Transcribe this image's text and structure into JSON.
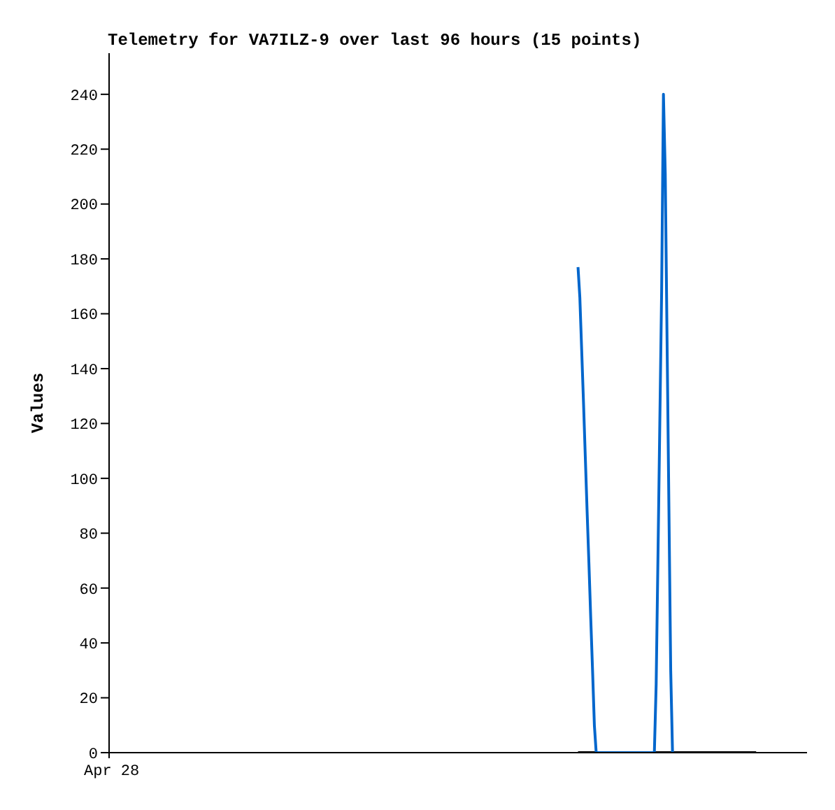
{
  "chart_data": {
    "type": "line",
    "title": "Telemetry for VA7ILZ-9 over last 96 hours (15 points)",
    "ylabel": "Values",
    "annotations": [
      "Apr 28"
    ],
    "ylim": [
      0,
      255
    ],
    "yticks": [
      0,
      20,
      40,
      60,
      80,
      100,
      120,
      140,
      160,
      180,
      200,
      220,
      240
    ],
    "grid": false,
    "legend": false,
    "marker": "none",
    "categories": [
      null,
      null,
      null,
      null,
      null,
      null,
      null,
      null,
      null,
      null,
      null,
      null,
      null,
      null,
      null,
      null,
      null,
      null,
      null,
      null,
      null,
      null,
      null,
      null,
      null,
      null,
      null,
      null,
      null,
      null,
      null,
      null,
      null,
      null,
      null,
      null,
      null,
      null,
      null,
      null,
      null,
      null,
      null,
      null,
      null,
      null,
      null,
      null,
      null,
      null,
      null,
      null,
      null,
      null,
      null,
      null,
      null,
      null,
      null,
      null,
      null,
      null,
      null,
      null,
      null,
      null,
      null,
      null,
      null,
      null,
      null,
      null,
      null,
      null,
      null,
      null,
      null,
      null,
      null,
      null,
      null,
      null,
      null,
      null,
      null,
      null,
      null,
      null,
      null,
      null,
      null,
      null,
      null,
      null,
      null,
      null,
      null,
      null,
      null,
      null,
      null,
      null,
      null,
      null,
      null,
      null,
      null,
      null,
      null,
      null,
      null,
      null,
      null,
      null,
      null,
      null,
      null,
      null,
      null,
      null,
      null,
      null,
      null,
      null,
      null,
      null,
      null,
      null,
      null,
      null,
      null,
      null,
      null,
      null,
      null,
      null,
      null,
      null,
      null,
      null,
      null,
      null,
      null,
      null,
      null,
      null,
      null,
      null,
      null,
      null,
      null,
      null,
      null,
      null,
      null,
      null,
      null,
      null,
      null,
      null,
      null,
      null,
      null,
      null,
      null,
      null,
      null,
      null,
      null,
      null,
      null,
      null,
      null,
      null,
      null,
      null,
      null,
      null,
      null,
      null,
      null,
      null,
      null,
      null,
      null,
      null,
      null,
      null,
      null,
      null,
      null,
      null,
      null,
      null,
      null,
      null,
      null,
      null,
      null,
      null,
      null,
      null,
      null,
      null,
      null,
      null,
      null,
      null,
      null,
      null,
      null,
      null,
      null,
      null,
      null,
      null,
      null,
      null,
      null,
      null,
      null,
      null,
      null,
      null,
      null,
      null,
      null,
      null,
      null,
      null,
      null,
      null,
      null,
      null,
      null,
      null,
      null,
      null,
      null,
      null,
      null,
      null,
      null,
      null,
      null,
      null,
      null,
      null,
      null,
      null,
      null,
      null,
      null,
      null,
      null,
      null,
      null,
      null,
      null,
      null,
      null,
      null,
      null,
      null,
      null,
      null,
      null,
      null,
      null,
      null,
      null,
      null,
      null,
      null,
      null,
      null,
      null,
      null,
      null,
      null,
      null,
      null,
      null,
      null,
      null,
      null,
      null,
      null,
      null,
      null,
      null,
      null,
      null,
      null,
      null,
      null,
      null,
      null,
      null,
      null,
      null,
      null,
      null,
      null,
      null,
      null,
      null,
      null,
      null,
      null,
      null,
      null,
      null,
      null,
      null,
      null,
      null,
      null,
      null,
      null,
      null,
      null,
      null,
      null,
      null,
      null,
      null,
      null,
      null,
      null,
      null,
      null,
      null,
      null,
      null,
      null,
      null,
      null,
      null,
      null,
      null,
      null,
      null,
      null,
      null,
      null,
      null,
      null,
      null,
      null,
      null,
      null,
      null,
      null,
      null,
      null,
      null,
      null,
      null,
      null,
      null,
      null,
      null,
      null,
      null,
      null,
      null,
      null,
      null,
      null,
      null,
      null,
      null,
      null,
      null,
      null,
      null,
      null,
      null,
      null,
      null,
      null,
      null,
      null,
      null
    ],
    "series": [
      {
        "color": "#000000",
        "values": [
          null,
          null,
          null,
          null,
          null,
          null,
          null,
          null,
          null,
          null,
          null,
          null,
          null,
          null,
          null,
          null,
          null,
          null,
          null,
          null,
          null,
          null,
          null,
          null,
          null,
          null,
          null,
          null,
          null,
          null,
          null,
          null,
          null,
          null,
          null,
          null,
          null,
          null,
          null,
          null,
          null,
          null,
          null,
          null,
          null,
          null,
          null,
          null,
          null,
          null,
          null,
          null,
          null,
          null,
          null,
          null,
          null,
          null,
          null,
          null,
          null,
          null,
          null,
          null,
          null,
          null,
          null,
          null,
          null,
          null,
          null,
          null,
          null,
          null,
          null,
          null,
          null,
          null,
          null,
          null,
          null,
          null,
          null,
          null,
          null,
          null,
          null,
          null,
          null,
          null,
          null,
          null,
          null,
          null,
          null,
          null,
          null,
          null,
          null,
          null,
          null,
          null,
          null,
          null,
          null,
          null,
          null,
          null,
          null,
          null,
          null,
          null,
          null,
          null,
          null,
          null,
          null,
          null,
          null,
          null,
          null,
          null,
          null,
          null,
          null,
          null,
          null,
          null,
          null,
          null,
          null,
          null,
          null,
          null,
          null,
          null,
          null,
          null,
          null,
          null,
          null,
          null,
          null,
          null,
          null,
          null,
          null,
          null,
          null,
          null,
          null,
          null,
          null,
          null,
          null,
          null,
          null,
          null,
          null,
          null,
          null,
          null,
          null,
          null,
          null,
          null,
          null,
          null,
          null,
          null,
          null,
          null,
          null,
          null,
          null,
          null,
          null,
          null,
          null,
          null,
          null,
          null,
          null,
          null,
          null,
          null,
          null,
          null,
          null,
          null,
          null,
          null,
          null,
          null,
          null,
          null,
          null,
          null,
          null,
          null,
          null,
          null,
          null,
          null,
          null,
          null,
          null,
          null,
          null,
          null,
          null,
          null,
          null,
          null,
          null,
          null,
          null,
          null,
          null,
          null,
          null,
          null,
          null,
          null,
          null,
          null,
          null,
          null,
          null,
          null,
          null,
          null,
          null,
          null,
          null,
          null,
          null,
          null,
          null,
          null,
          null,
          null,
          null,
          null,
          null,
          null,
          null,
          null,
          null,
          null,
          null,
          null,
          null,
          null,
          null,
          null,
          null,
          null,
          0,
          0,
          0,
          0,
          0,
          0,
          0,
          0,
          0,
          0,
          0,
          0,
          0,
          0,
          0,
          0,
          0,
          0,
          0,
          0,
          0,
          0,
          0,
          0,
          0,
          0,
          0,
          0,
          0,
          0,
          0,
          0,
          0,
          0,
          0,
          0,
          0,
          0,
          0,
          0,
          0,
          0,
          0,
          0,
          0,
          0,
          0,
          0,
          0,
          0,
          0,
          0,
          0,
          0,
          0,
          0,
          0,
          0,
          0,
          0,
          0,
          0,
          0,
          0,
          0,
          0,
          0,
          0,
          0,
          0,
          0,
          0,
          0,
          0,
          0,
          0,
          0,
          0,
          0,
          0,
          0,
          0,
          0,
          0,
          0,
          0,
          0,
          0,
          0,
          0,
          0,
          0,
          0,
          0,
          0,
          0,
          0,
          0,
          0,
          null,
          null,
          null,
          null,
          null,
          null,
          null,
          null,
          null,
          null,
          null,
          null,
          null,
          null,
          null,
          null,
          null,
          null,
          null,
          null,
          null,
          null,
          null,
          null,
          null,
          null,
          null,
          null
        ]
      },
      {
        "color": "#0066cc",
        "values": [
          null,
          null,
          null,
          null,
          null,
          null,
          null,
          null,
          null,
          null,
          null,
          null,
          null,
          null,
          null,
          null,
          null,
          null,
          null,
          null,
          null,
          null,
          null,
          null,
          null,
          null,
          null,
          null,
          null,
          null,
          null,
          null,
          null,
          null,
          null,
          null,
          null,
          null,
          null,
          null,
          null,
          null,
          null,
          null,
          null,
          null,
          null,
          null,
          null,
          null,
          null,
          null,
          null,
          null,
          null,
          null,
          null,
          null,
          null,
          null,
          null,
          null,
          null,
          null,
          null,
          null,
          null,
          null,
          null,
          null,
          null,
          null,
          null,
          null,
          null,
          null,
          null,
          null,
          null,
          null,
          null,
          null,
          null,
          null,
          null,
          null,
          null,
          null,
          null,
          null,
          null,
          null,
          null,
          null,
          null,
          null,
          null,
          null,
          null,
          null,
          null,
          null,
          null,
          null,
          null,
          null,
          null,
          null,
          null,
          null,
          null,
          null,
          null,
          null,
          null,
          null,
          null,
          null,
          null,
          null,
          null,
          null,
          null,
          null,
          null,
          null,
          null,
          null,
          null,
          null,
          null,
          null,
          null,
          null,
          null,
          null,
          null,
          null,
          null,
          null,
          null,
          null,
          null,
          null,
          null,
          null,
          null,
          null,
          null,
          null,
          null,
          null,
          null,
          null,
          null,
          null,
          null,
          null,
          null,
          null,
          null,
          null,
          null,
          null,
          null,
          null,
          null,
          null,
          null,
          null,
          null,
          null,
          null,
          null,
          null,
          null,
          null,
          null,
          null,
          null,
          null,
          null,
          null,
          null,
          null,
          null,
          null,
          null,
          null,
          null,
          null,
          null,
          null,
          null,
          null,
          null,
          null,
          null,
          null,
          null,
          null,
          null,
          null,
          null,
          null,
          null,
          null,
          null,
          null,
          null,
          null,
          null,
          null,
          null,
          null,
          null,
          null,
          null,
          null,
          null,
          null,
          null,
          null,
          null,
          null,
          null,
          null,
          null,
          null,
          null,
          null,
          null,
          null,
          null,
          null,
          null,
          null,
          null,
          null,
          null,
          null,
          null,
          null,
          null,
          null,
          null,
          null,
          null,
          null,
          null,
          null,
          null,
          null,
          null,
          null,
          null,
          null,
          null,
          177,
          166,
          147,
          128,
          108,
          88,
          69,
          49,
          30,
          10,
          0,
          0,
          0,
          0,
          0,
          0,
          0,
          0,
          0,
          0,
          0,
          0,
          0,
          0,
          0,
          0,
          0,
          0,
          0,
          0,
          0,
          0,
          0,
          0,
          0,
          0,
          0,
          0,
          0,
          0,
          0,
          0,
          0,
          25,
          72,
          120,
          168,
          240,
          211,
          150,
          90,
          30,
          0,
          null,
          null,
          null,
          null,
          null,
          null,
          null,
          null,
          null,
          null,
          null,
          null,
          null,
          null,
          null,
          null,
          null,
          null,
          null,
          null,
          null,
          null,
          null,
          null,
          null,
          null,
          null,
          null,
          null,
          null,
          null,
          null,
          null,
          null,
          null,
          null,
          null,
          null,
          null,
          null,
          null,
          null,
          null,
          null,
          null,
          null,
          null,
          null,
          null,
          null,
          null,
          null,
          null,
          null,
          null,
          null,
          null,
          null,
          null,
          null,
          null,
          null,
          null,
          null,
          null,
          null,
          null,
          null,
          null,
          null,
          null,
          null,
          null,
          null
        ]
      }
    ]
  }
}
